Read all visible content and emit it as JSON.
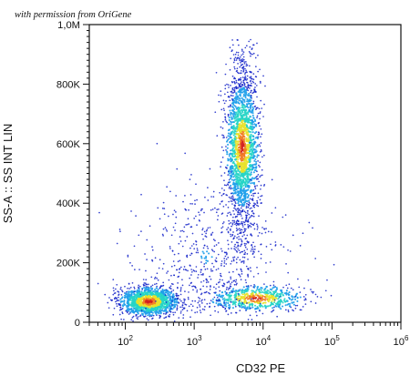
{
  "header": {
    "watermark": "with permission from OriGene"
  },
  "chart_data": {
    "type": "scatter",
    "title": "",
    "subtitle": "",
    "xlabel": "CD32 PE",
    "ylabel": "SS-A :: SS INT LIN",
    "x_scale": "log",
    "y_scale": "linear",
    "xlim": [
      30,
      1000000
    ],
    "ylim": [
      0,
      1000000
    ],
    "grid": false,
    "legend": "none",
    "x_ticks": [
      {
        "value": 100,
        "base": "10",
        "exp": "2"
      },
      {
        "value": 1000,
        "base": "10",
        "exp": "3"
      },
      {
        "value": 10000,
        "base": "10",
        "exp": "4"
      },
      {
        "value": 100000,
        "base": "10",
        "exp": "5"
      },
      {
        "value": 1000000,
        "base": "10",
        "exp": "6"
      }
    ],
    "y_ticks": [
      {
        "value": 0,
        "label": "0"
      },
      {
        "value": 200000,
        "label": "200K"
      },
      {
        "value": 400000,
        "label": "400K"
      },
      {
        "value": 600000,
        "label": "600K"
      },
      {
        "value": 800000,
        "label": "800K"
      },
      {
        "value": 1000000,
        "label": "1,0M"
      }
    ],
    "density_colors": [
      "#1020c8",
      "#1fa0ea",
      "#26d5c7",
      "#e7e22a",
      "#f27c25",
      "#d21f1f"
    ],
    "populations": [
      {
        "name": "low side scatter cluster",
        "x_center": 220,
        "x_spread_log10": 0.22,
        "y_center": 70000,
        "y_spread": 25000,
        "points": 1300
      },
      {
        "name": "tall side scatter population",
        "x_center": 5000,
        "x_spread_log10": 0.12,
        "y_center": 590000,
        "y_spread": 150000,
        "points": 2000
      },
      {
        "name": "lower positive population",
        "x_center": 8000,
        "x_spread_log10": 0.35,
        "y_center": 80000,
        "y_spread": 22000,
        "points": 600
      },
      {
        "name": "diffuse background",
        "x_center": 1500,
        "x_spread_log10": 0.55,
        "y_center": 220000,
        "y_spread": 120000,
        "points": 550
      }
    ]
  }
}
